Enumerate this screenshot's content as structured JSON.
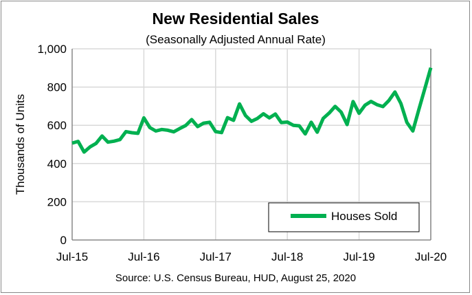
{
  "chart_data": {
    "type": "line",
    "title": "New Residential Sales",
    "subtitle": "(Seasonally Adjusted Annual Rate)",
    "ylabel": "Thousands of Units",
    "xlabel": "",
    "source": "Source:  U.S. Census Bureau, HUD, August 25, 2020",
    "ylim": [
      0,
      1000
    ],
    "yticks": [
      0,
      200,
      400,
      600,
      800,
      1000
    ],
    "ytick_labels": [
      "0",
      "200",
      "400",
      "600",
      "800",
      "1,000"
    ],
    "xtick_labels": [
      "Jul-15",
      "Jul-16",
      "Jul-17",
      "Jul-18",
      "Jul-19",
      "Jul-20"
    ],
    "grid": true,
    "legend": "bottom-right",
    "series": [
      {
        "name": "Houses Sold",
        "color": "#00b050",
        "values": [
          507,
          516,
          460,
          487,
          505,
          544,
          512,
          517,
          525,
          567,
          561,
          558,
          639,
          588,
          570,
          578,
          574,
          566,
          583,
          599,
          630,
          593,
          611,
          616,
          567,
          562,
          640,
          626,
          712,
          651,
          621,
          636,
          660,
          639,
          659,
          614,
          617,
          600,
          597,
          555,
          616,
          564,
          636,
          664,
          699,
          669,
          604,
          724,
          663,
          705,
          725,
          708,
          698,
          730,
          774,
          714,
          615,
          570,
          682,
          791,
          901
        ]
      }
    ]
  }
}
